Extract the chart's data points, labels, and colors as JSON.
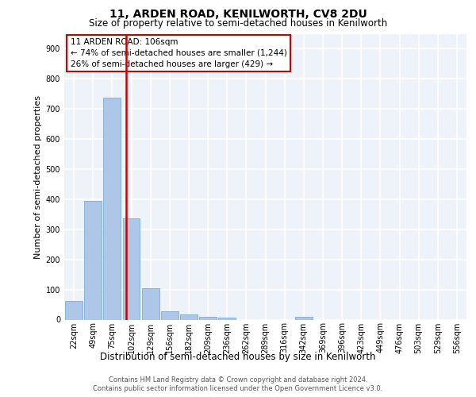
{
  "title1": "11, ARDEN ROAD, KENILWORTH, CV8 2DU",
  "title2": "Size of property relative to semi-detached houses in Kenilworth",
  "xlabel": "Distribution of semi-detached houses by size in Kenilworth",
  "ylabel": "Number of semi-detached properties",
  "categories": [
    "22sqm",
    "49sqm",
    "75sqm",
    "102sqm",
    "129sqm",
    "156sqm",
    "182sqm",
    "209sqm",
    "236sqm",
    "262sqm",
    "289sqm",
    "316sqm",
    "342sqm",
    "369sqm",
    "396sqm",
    "423sqm",
    "449sqm",
    "476sqm",
    "503sqm",
    "529sqm",
    "556sqm"
  ],
  "values": [
    63,
    395,
    737,
    337,
    103,
    28,
    17,
    9,
    7,
    0,
    0,
    0,
    8,
    0,
    0,
    0,
    0,
    0,
    0,
    0,
    0
  ],
  "bar_color": "#aec6e8",
  "bar_edge_color": "#7aaed0",
  "vline_color": "#cc0000",
  "vline_x": 2.73,
  "annotation_title": "11 ARDEN ROAD: 106sqm",
  "annotation_line1": "← 74% of semi-detached houses are smaller (1,244)",
  "annotation_line2": "26% of semi-detached houses are larger (429) →",
  "annotation_box_color": "#ffffff",
  "annotation_box_edge": "#cc0000",
  "ylim": [
    0,
    950
  ],
  "yticks": [
    0,
    100,
    200,
    300,
    400,
    500,
    600,
    700,
    800,
    900
  ],
  "footer1": "Contains HM Land Registry data © Crown copyright and database right 2024.",
  "footer2": "Contains public sector information licensed under the Open Government Licence v3.0.",
  "bg_color": "#eef2f9",
  "grid_color": "#ffffff",
  "title1_fontsize": 10,
  "title2_fontsize": 8.5,
  "ylabel_fontsize": 8,
  "xlabel_fontsize": 8.5,
  "tick_fontsize": 7,
  "ann_fontsize": 7.5,
  "footer_fontsize": 6
}
